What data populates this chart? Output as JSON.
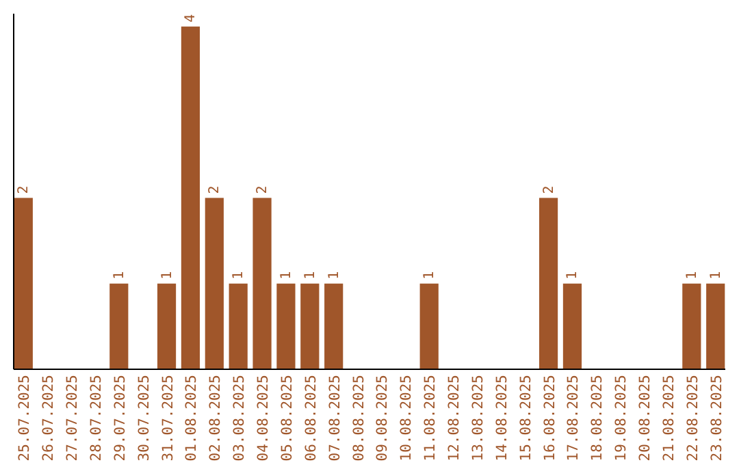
{
  "chart_data": {
    "type": "bar",
    "categories": [
      "25.07.2025",
      "26.07.2025",
      "27.07.2025",
      "28.07.2025",
      "29.07.2025",
      "30.07.2025",
      "31.07.2025",
      "01.08.2025",
      "02.08.2025",
      "03.08.2025",
      "04.08.2025",
      "05.08.2025",
      "06.08.2025",
      "07.08.2025",
      "08.08.2025",
      "09.08.2025",
      "10.08.2025",
      "11.08.2025",
      "12.08.2025",
      "13.08.2025",
      "14.08.2025",
      "15.08.2025",
      "16.08.2025",
      "17.08.2025",
      "18.08.2025",
      "19.08.2025",
      "20.08.2025",
      "21.08.2025",
      "22.08.2025",
      "23.08.2025"
    ],
    "values": [
      2,
      0,
      0,
      0,
      1,
      0,
      1,
      4,
      2,
      1,
      2,
      1,
      1,
      1,
      0,
      0,
      0,
      1,
      0,
      0,
      0,
      0,
      2,
      1,
      0,
      0,
      0,
      0,
      1,
      1
    ],
    "value_labels": [
      "2",
      null,
      null,
      null,
      "1",
      null,
      "1",
      "4",
      "2",
      "1",
      "2",
      "1",
      "1",
      "1",
      null,
      null,
      null,
      "1",
      null,
      null,
      null,
      null,
      "2",
      "1",
      null,
      null,
      null,
      null,
      "1",
      "1"
    ],
    "color": "#a0562a",
    "ylim": [
      0,
      4.15
    ],
    "tick_labels": "x"
  }
}
